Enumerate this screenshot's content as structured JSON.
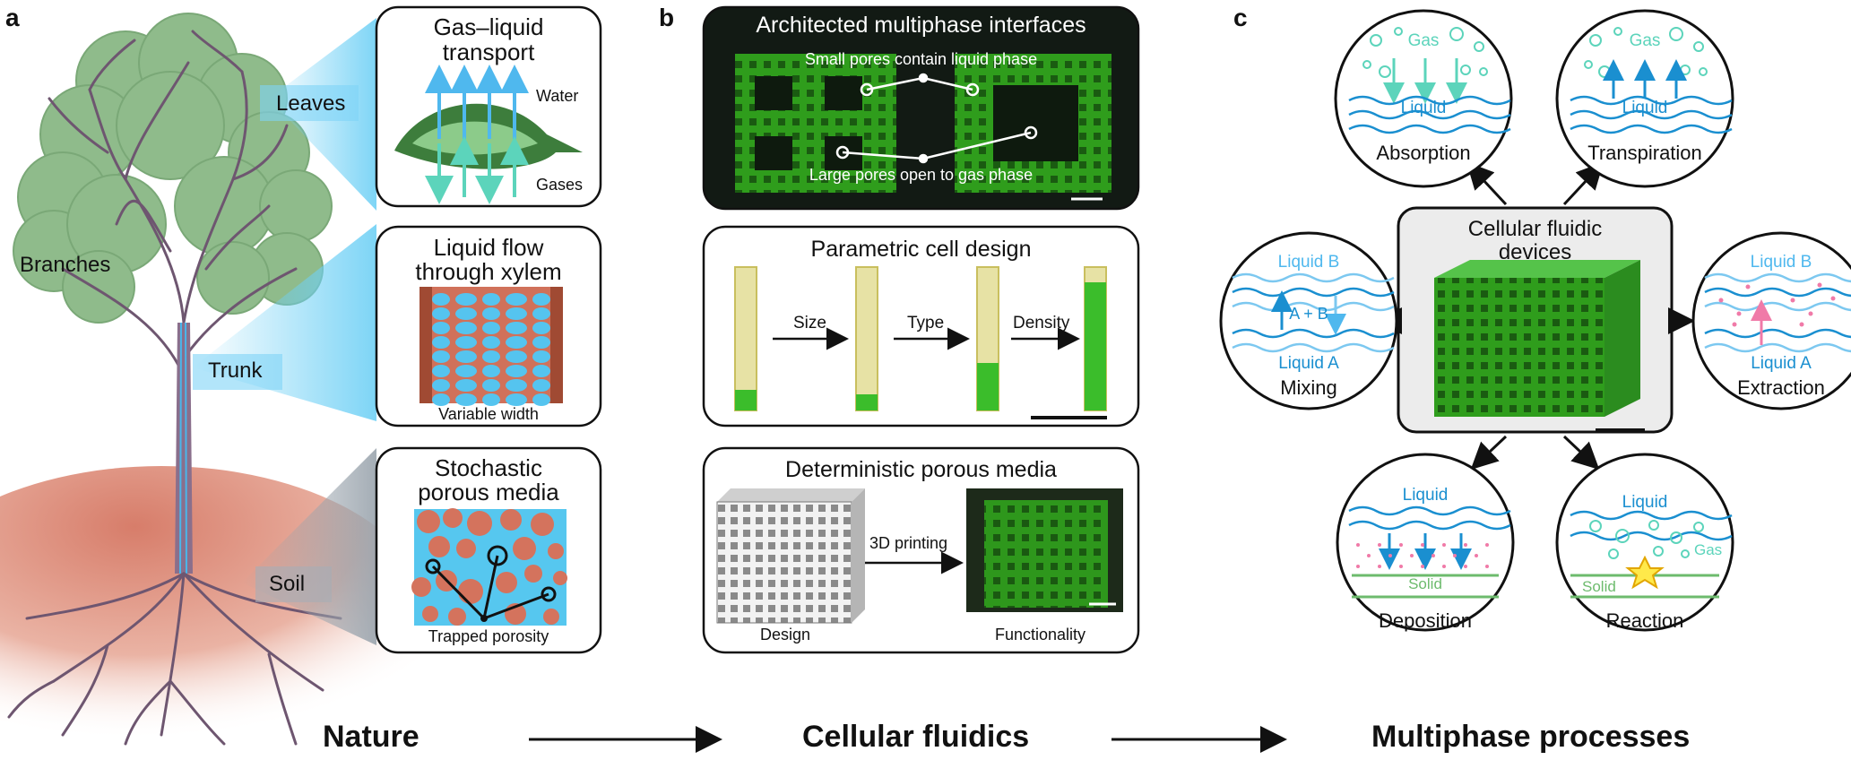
{
  "panel_letters": {
    "a": "a",
    "b": "b",
    "c": "c"
  },
  "panel_a": {
    "tree_labels": {
      "leaves": "Leaves",
      "branches": "Branches",
      "trunk": "Trunk",
      "soil": "Soil"
    },
    "box1": {
      "title_line1": "Gas–liquid",
      "title_line2": "transport",
      "water_label": "Water",
      "gases_label": "Gases"
    },
    "box2": {
      "title_line1": "Liquid flow",
      "title_line2": "through xylem",
      "caption": "Variable width"
    },
    "box3": {
      "title_line1": "Stochastic",
      "title_line2": "porous media",
      "caption": "Trapped porosity"
    }
  },
  "panel_b": {
    "box1": {
      "title": "Architected multiphase interfaces",
      "annotation_top": "Small pores contain liquid phase",
      "annotation_bottom": "Large pores open to gas phase"
    },
    "box2": {
      "title": "Parametric cell design",
      "step1": "Size",
      "step2": "Type",
      "step3": "Density"
    },
    "box3": {
      "title": "Deterministic porous media",
      "arrow_label": "3D printing",
      "caption_left": "Design",
      "caption_right": "Functionality"
    }
  },
  "panel_c": {
    "center_title_line1": "Cellular fluidic",
    "center_title_line2": "devices",
    "absorption": {
      "name": "Absorption",
      "gas": "Gas",
      "liquid": "Liquid"
    },
    "transpiration": {
      "name": "Transpiration",
      "gas": "Gas",
      "liquid": "Liquid"
    },
    "mixing": {
      "name": "Mixing",
      "liquid_b": "Liquid B",
      "liquid_a": "Liquid A",
      "middle": "A + B"
    },
    "extraction": {
      "name": "Extraction",
      "liquid_b": "Liquid B",
      "liquid_a": "Liquid A"
    },
    "deposition": {
      "name": "Deposition",
      "liquid": "Liquid",
      "solid": "Solid"
    },
    "reaction": {
      "name": "Reaction",
      "liquid": "Liquid",
      "gas": "Gas",
      "solid": "Solid"
    }
  },
  "bottom": {
    "nature": "Nature",
    "cellular": "Cellular fluidics",
    "multiphase": "Multiphase processes"
  },
  "colors": {
    "leaf_green": "#8db889",
    "light_blue": "#5bc8f0",
    "xylem_red": "#c9684f",
    "device_green": "#3fbf2a",
    "liquid_blue": "#1a8fd0",
    "gas_teal": "#4fd2b4",
    "pink": "#f07aa8",
    "solid_green": "#6dbb6d"
  }
}
